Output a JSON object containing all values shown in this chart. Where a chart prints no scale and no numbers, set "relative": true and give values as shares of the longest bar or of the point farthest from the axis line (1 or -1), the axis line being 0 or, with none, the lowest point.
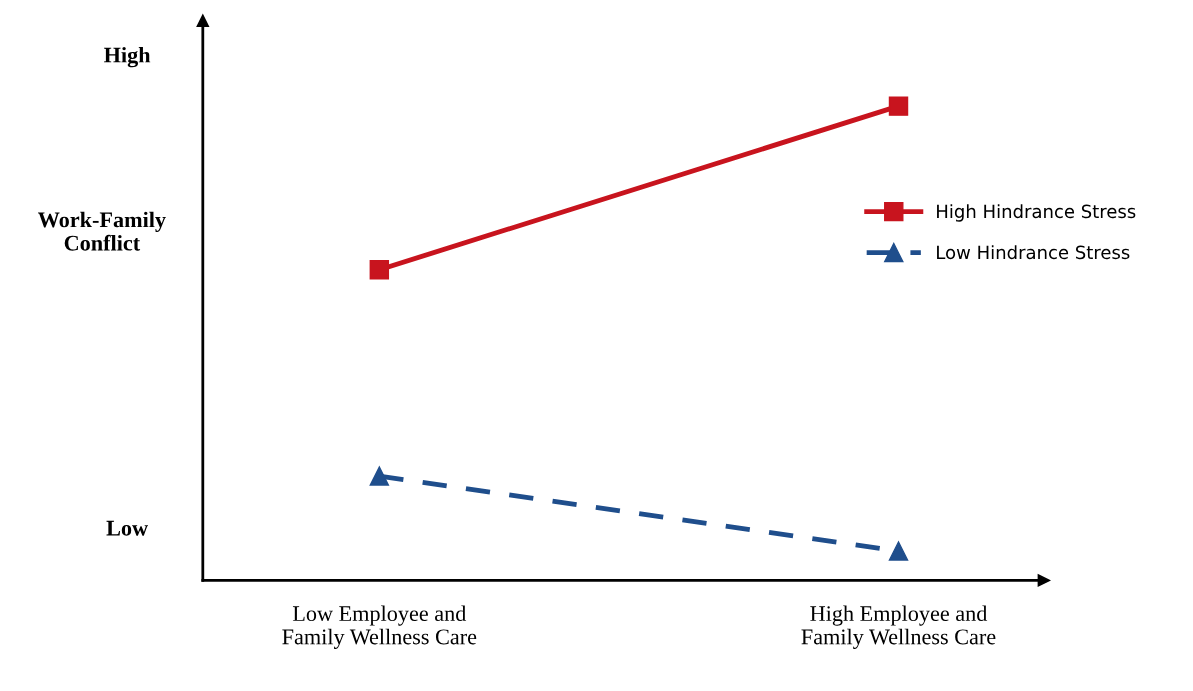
{
  "chart_data": {
    "type": "line",
    "relative": true,
    "ylabel": "Work-Family\nConflict",
    "categories": [
      "Low Employee and\nFamily Wellness Care",
      "High Employee and\nFamily Wellness Care"
    ],
    "series": [
      {
        "name": "High Hindrance Stress",
        "color": "#c8141e",
        "values": [
          0.655,
          1
        ],
        "marker": "square",
        "line_style": "solid"
      },
      {
        "name": "Low Hindrance Stress",
        "color": "#1f4e8c",
        "values": [
          0.22,
          0.062
        ],
        "marker": "triangle",
        "line_style": "dashed"
      }
    ],
    "annotations": [
      "High",
      "Low"
    ],
    "legend": "right",
    "grid": false
  }
}
